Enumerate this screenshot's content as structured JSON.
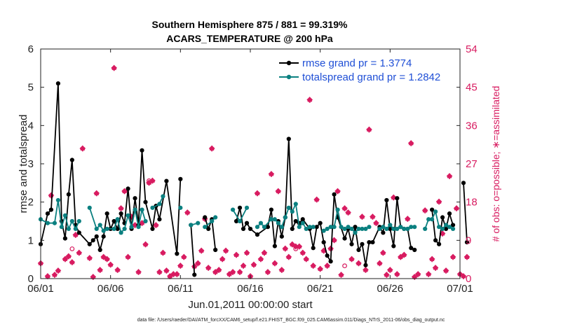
{
  "chart_data": {
    "type": "line",
    "title": [
      "Southern Hemisphere 875 / 881 = 99.319%",
      "ACARS_TEMPERATURE @ 200 hPa"
    ],
    "xlabel": "Jun.01,2011 00:00:00 start",
    "ylabel": "rmse and totalspread",
    "ylabel_right": "# of obs: o=possible; ∗=assimilated",
    "xlim": [
      0,
      30
    ],
    "ylim": [
      0,
      6
    ],
    "ylim_right": [
      0,
      54
    ],
    "xticks": [
      0,
      5,
      10,
      15,
      20,
      25,
      30
    ],
    "xticklabels": [
      "06/01",
      "06/06",
      "06/11",
      "06/16",
      "06/21",
      "06/26",
      "07/01"
    ],
    "yticks": [
      "0",
      "1",
      "2",
      "3",
      "4",
      "5",
      "6"
    ],
    "yticks_right": [
      "0",
      "9",
      "18",
      "27",
      "36",
      "45",
      "54"
    ],
    "legend": [
      "rmse grand pr = 1.3774",
      "totalspread grand pr = 1.2842"
    ],
    "footnote": "data file: /Users/raeder/DAI/ATM_forcXX/CAM6_setup/f.e21.FHIST_BGC.f09_025.CAM6assim.011/Diags_NTrS_2011-06/obs_diag_output.nc",
    "colors": {
      "rmse": "#000000",
      "spread": "#0b8080",
      "obs": "#d81b60",
      "legend_text": "#1f4fd6"
    },
    "series": [
      {
        "name": "rmse",
        "points": [
          [
            0,
            0.9
          ],
          [
            0.5,
            1.7
          ],
          [
            0.75,
            1.8
          ],
          [
            1.25,
            5.1
          ],
          [
            1.5,
            1.5
          ],
          [
            1.75,
            1.05
          ],
          [
            2.0,
            2.2
          ],
          [
            2.25,
            3.1
          ],
          [
            2.5,
            1.4
          ],
          [
            2.75,
            1.2
          ],
          [
            3.5,
            0.9
          ],
          [
            3.75,
            1.0
          ],
          [
            4.0,
            1.1
          ],
          [
            4.25,
            0.75
          ],
          [
            4.5,
            1.1
          ],
          [
            4.75,
            1.7
          ],
          [
            5.0,
            1.3
          ],
          [
            5.25,
            1.5
          ],
          [
            5.5,
            1.3
          ],
          [
            5.75,
            1.7
          ],
          [
            6.0,
            1.45
          ],
          [
            6.25,
            2.35
          ],
          [
            6.5,
            1.3
          ],
          [
            6.75,
            2.1
          ],
          [
            7.0,
            1.4
          ],
          [
            7.25,
            3.35
          ],
          [
            7.5,
            2.0
          ],
          [
            8.0,
            1.3
          ],
          [
            8.25,
            1.9
          ],
          [
            8.5,
            1.55
          ],
          [
            9.0,
            2.55
          ],
          [
            9.75,
            0.65
          ],
          [
            10.0,
            2.6
          ],
          [
            null,
            null
          ],
          [
            10.75,
            1.4
          ],
          [
            11.0,
            0.1
          ],
          [
            null,
            null
          ],
          [
            11.75,
            1.6
          ],
          [
            12.0,
            1.3
          ],
          [
            12.25,
            1.55
          ],
          [
            12.5,
            0.75
          ],
          [
            null,
            null
          ],
          [
            14.0,
            1.5
          ],
          [
            14.25,
            1.85
          ],
          [
            14.5,
            1.3
          ],
          [
            14.75,
            1.45
          ],
          [
            15.0,
            1.3
          ],
          [
            15.5,
            1.15
          ],
          [
            16.25,
            1.35
          ],
          [
            16.5,
            1.8
          ],
          [
            16.75,
            0.85
          ],
          [
            17.0,
            1.5
          ],
          [
            17.25,
            1.1
          ],
          [
            17.5,
            1.6
          ],
          [
            17.75,
            3.65
          ],
          [
            18.0,
            1.3
          ],
          [
            18.25,
            1.5
          ],
          [
            18.5,
            1.45
          ],
          [
            18.75,
            1.55
          ],
          [
            19.25,
            1.3
          ],
          [
            19.5,
            0.8
          ],
          [
            19.75,
            1.35
          ],
          [
            20.0,
            1.45
          ],
          [
            20.25,
            0.95
          ],
          [
            20.5,
            0.6
          ],
          [
            20.75,
            0.45
          ],
          [
            21.0,
            2.2
          ],
          [
            21.25,
            1.6
          ],
          [
            21.75,
            1.05
          ],
          [
            22.0,
            1.3
          ],
          [
            22.25,
            0.9
          ],
          [
            22.5,
            1.35
          ],
          [
            22.75,
            0.75
          ],
          [
            23.0,
            0.9
          ],
          [
            23.25,
            0.35
          ],
          [
            23.5,
            0.95
          ],
          [
            23.75,
            0.95
          ],
          [
            24.25,
            1.35
          ],
          [
            24.5,
            1.2
          ],
          [
            24.75,
            2.05
          ],
          [
            25.0,
            1.3
          ],
          [
            25.25,
            0.85
          ],
          [
            25.5,
            2.1
          ],
          [
            25.75,
            1.35
          ],
          [
            26.0,
            1.3
          ],
          [
            26.25,
            1.3
          ],
          [
            26.5,
            0.8
          ],
          [
            26.75,
            0.75
          ],
          [
            null,
            null
          ],
          [
            28.0,
            1.8
          ],
          [
            28.25,
            1.0
          ],
          [
            28.5,
            0.9
          ],
          [
            28.75,
            1.6
          ],
          [
            29.0,
            1.3
          ],
          [
            29.25,
            1.7
          ],
          [
            29.5,
            1.4
          ],
          [
            null,
            null
          ],
          [
            30.25,
            2.5
          ],
          [
            30.5,
            0.95
          ]
        ]
      },
      {
        "name": "totalspread",
        "points": [
          [
            0,
            1.55
          ],
          [
            0.5,
            1.45
          ],
          [
            1.0,
            1.45
          ],
          [
            1.25,
            2.05
          ],
          [
            1.5,
            1.35
          ],
          [
            1.75,
            1.65
          ],
          [
            2.0,
            1.3
          ],
          [
            2.25,
            1.5
          ],
          [
            2.5,
            1.3
          ],
          [
            2.75,
            1.5
          ],
          [
            null,
            null
          ],
          [
            3.5,
            1.85
          ],
          [
            4.0,
            1.3
          ],
          [
            4.25,
            1.4
          ],
          [
            4.5,
            1.25
          ],
          [
            4.75,
            1.3
          ],
          [
            5.25,
            1.3
          ],
          [
            5.5,
            1.55
          ],
          [
            5.75,
            1.2
          ],
          [
            6.0,
            1.3
          ],
          [
            6.25,
            1.65
          ],
          [
            6.5,
            1.35
          ],
          [
            6.75,
            1.8
          ],
          [
            7.0,
            1.35
          ],
          [
            7.25,
            1.8
          ],
          [
            7.5,
            1.5
          ],
          [
            null,
            null
          ],
          [
            8.0,
            1.85
          ],
          [
            8.5,
            1.95
          ],
          [
            8.75,
            2.15
          ],
          [
            null,
            null
          ],
          [
            10.0,
            1.85
          ],
          [
            null,
            null
          ],
          [
            10.75,
            1.4
          ],
          [
            11.25,
            1.45
          ],
          [
            null,
            null
          ],
          [
            11.75,
            1.35
          ],
          [
            12.25,
            1.5
          ],
          [
            12.5,
            1.6
          ],
          [
            null,
            null
          ],
          [
            13.75,
            1.8
          ],
          [
            14.25,
            1.5
          ],
          [
            14.75,
            1.85
          ],
          [
            null,
            null
          ],
          [
            15.5,
            1.35
          ],
          [
            15.75,
            1.45
          ],
          [
            16.0,
            1.35
          ],
          [
            16.5,
            1.55
          ],
          [
            16.75,
            1.55
          ],
          [
            17.0,
            1.45
          ],
          [
            17.25,
            1.35
          ],
          [
            17.5,
            1.6
          ],
          [
            17.75,
            1.85
          ],
          [
            18.0,
            1.75
          ],
          [
            18.25,
            1.95
          ],
          [
            18.5,
            1.35
          ],
          [
            18.75,
            1.45
          ],
          [
            19.0,
            1.3
          ],
          [
            19.25,
            1.35
          ],
          [
            19.5,
            1.35
          ],
          [
            null,
            null
          ],
          [
            20.25,
            1.25
          ],
          [
            20.5,
            1.3
          ],
          [
            20.75,
            1.35
          ],
          [
            21.0,
            1.35
          ],
          [
            21.25,
            1.8
          ],
          [
            21.5,
            1.35
          ],
          [
            21.75,
            1.3
          ],
          [
            22.0,
            1.35
          ],
          [
            22.25,
            1.3
          ],
          [
            22.5,
            1.2
          ],
          [
            22.75,
            1.3
          ],
          [
            23.0,
            1.3
          ],
          [
            23.25,
            1.3
          ],
          [
            23.5,
            1.35
          ],
          [
            null,
            null
          ],
          [
            24.25,
            1.3
          ],
          [
            24.5,
            1.35
          ],
          [
            24.75,
            1.3
          ],
          [
            25.0,
            1.4
          ],
          [
            25.25,
            1.3
          ],
          [
            25.5,
            1.3
          ],
          [
            25.75,
            1.35
          ],
          [
            26.0,
            1.3
          ],
          [
            26.25,
            1.3
          ],
          [
            26.5,
            1.35
          ],
          [
            26.75,
            1.35
          ],
          [
            null,
            null
          ],
          [
            27.5,
            1.3
          ],
          [
            27.75,
            1.55
          ],
          [
            28.0,
            1.55
          ],
          [
            28.25,
            1.75
          ],
          [
            28.5,
            1.35
          ],
          [
            28.75,
            1.3
          ],
          [
            29.0,
            1.4
          ],
          [
            29.25,
            1.35
          ],
          [
            29.5,
            1.3
          ]
        ]
      }
    ],
    "obs_possible": [
      [
        0,
        3.5
      ],
      [
        0.5,
        0.5
      ],
      [
        0.75,
        19.5
      ],
      [
        1.0,
        0.8
      ],
      [
        1.25,
        1.8
      ],
      [
        1.75,
        4.5
      ],
      [
        2.0,
        5.2
      ],
      [
        2.25,
        3.8
      ],
      [
        2.5,
        10.2
      ],
      [
        2.75,
        6.0
      ],
      [
        3.0,
        30.5
      ],
      [
        3.5,
        4.8
      ],
      [
        3.75,
        0.3
      ],
      [
        4.0,
        20
      ],
      [
        4.25,
        2.0
      ],
      [
        4.5,
        5.0
      ],
      [
        4.75,
        4.5
      ],
      [
        5.0,
        3.2
      ],
      [
        5.25,
        49.5
      ],
      [
        5.5,
        2.0
      ],
      [
        5.75,
        16.5
      ],
      [
        6.0,
        20.5
      ],
      [
        6.25,
        5.0
      ],
      [
        6.5,
        14.5
      ],
      [
        6.75,
        12.5
      ],
      [
        7.0,
        1.5
      ],
      [
        7.25,
        13.0
      ],
      [
        7.5,
        8.0
      ],
      [
        7.75,
        22.5
      ],
      [
        8.0,
        23
      ],
      [
        8.25,
        12.5
      ],
      [
        8.5,
        1.5
      ],
      [
        8.75,
        6.0
      ],
      [
        9.0,
        1.8
      ],
      [
        9.25,
        0.5
      ],
      [
        9.5,
        1.0
      ],
      [
        9.75,
        1.0
      ],
      [
        10.0,
        3.0
      ],
      [
        10.25,
        5.0
      ],
      [
        10.5,
        15.5
      ],
      [
        11.0,
        2.8
      ],
      [
        11.25,
        3.5
      ],
      [
        11.5,
        6.5
      ],
      [
        11.75,
        14.0
      ],
      [
        12.0,
        2.5
      ],
      [
        12.25,
        30.5
      ],
      [
        12.5,
        1.5
      ],
      [
        12.75,
        2.0
      ],
      [
        13.0,
        4.5
      ],
      [
        13.25,
        6.5
      ],
      [
        13.5,
        1.0
      ],
      [
        13.75,
        1.5
      ],
      [
        14.0,
        5.5
      ],
      [
        14.25,
        1.5
      ],
      [
        14.5,
        3.0
      ],
      [
        14.75,
        6.0
      ],
      [
        15.0,
        0.5
      ],
      [
        15.25,
        3.2
      ],
      [
        15.5,
        20.0
      ],
      [
        15.75,
        4.5
      ],
      [
        16.0,
        6.0
      ],
      [
        16.25,
        1.5
      ],
      [
        16.5,
        24.5
      ],
      [
        16.75,
        3.5
      ],
      [
        17.0,
        20.5
      ],
      [
        17.25,
        2.0
      ],
      [
        17.5,
        7.0
      ],
      [
        17.75,
        5.0
      ],
      [
        18.0,
        8.0
      ],
      [
        18.25,
        7.5
      ],
      [
        18.5,
        7.5
      ],
      [
        18.75,
        6.0
      ],
      [
        19.0,
        4.5
      ],
      [
        19.25,
        42.0
      ],
      [
        19.5,
        3.0
      ],
      [
        19.75,
        18.5
      ],
      [
        20.0,
        2.2
      ],
      [
        20.25,
        6.5
      ],
      [
        20.5,
        3.0
      ],
      [
        20.75,
        7.0
      ],
      [
        21.0,
        9.0
      ],
      [
        21.25,
        20.5
      ],
      [
        21.5,
        0.8
      ],
      [
        21.75,
        16.5
      ],
      [
        22.0,
        15.5
      ],
      [
        22.25,
        4.5
      ],
      [
        22.75,
        3.5
      ],
      [
        23.0,
        14.5
      ],
      [
        23.25,
        2.0
      ],
      [
        23.5,
        35.0
      ],
      [
        23.75,
        14.5
      ],
      [
        24.0,
        13.0
      ],
      [
        24.25,
        3.5
      ],
      [
        24.5,
        6.0
      ],
      [
        24.75,
        0.8
      ],
      [
        25.0,
        2.0
      ],
      [
        25.25,
        19.0
      ],
      [
        25.5,
        1.0
      ],
      [
        25.75,
        5.0
      ],
      [
        26.0,
        5.5
      ],
      [
        26.25,
        14.0
      ],
      [
        26.5,
        31.8
      ],
      [
        26.75,
        0.3
      ],
      [
        27.0,
        1.0
      ],
      [
        27.5,
        16.0
      ],
      [
        27.75,
        1.0
      ],
      [
        28.0,
        4.5
      ],
      [
        28.25,
        2.5
      ],
      [
        28.5,
        18.0
      ],
      [
        28.75,
        10.5
      ],
      [
        29.0,
        1.8
      ],
      [
        29.25,
        24.0
      ],
      [
        29.5,
        5.0
      ],
      [
        29.75,
        16.5
      ],
      [
        30.0,
        1.0
      ],
      [
        30.25,
        0.5
      ],
      [
        30.5,
        5.0
      ]
    ],
    "obs_possible_open": [
      [
        2.25,
        7.0
      ],
      [
        7.75,
        23.0
      ],
      [
        18.25,
        7.0
      ],
      [
        21.75,
        3.0
      ]
    ]
  }
}
